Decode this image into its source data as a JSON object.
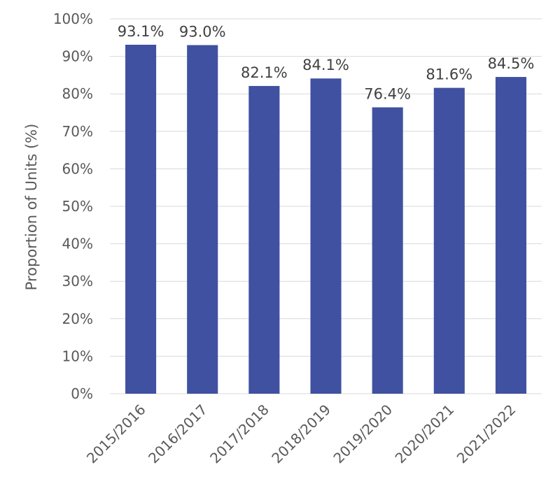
{
  "chart_data": {
    "type": "bar",
    "title": "",
    "xlabel": "",
    "ylabel": "Proportion of Units (%)",
    "categories": [
      "2015/2016",
      "2016/2017",
      "2017/2018",
      "2018/2019",
      "2019/2020",
      "2020/2021",
      "2021/2022"
    ],
    "values": [
      93.1,
      93.0,
      82.1,
      84.1,
      76.4,
      81.6,
      84.5
    ],
    "data_labels": [
      "93.1%",
      "93.0%",
      "82.1%",
      "84.1%",
      "76.4%",
      "81.6%",
      "84.5%"
    ],
    "y_ticks": [
      0,
      10,
      20,
      30,
      40,
      50,
      60,
      70,
      80,
      90,
      100
    ],
    "y_tick_labels": [
      "0%",
      "10%",
      "20%",
      "30%",
      "40%",
      "50%",
      "60%",
      "70%",
      "80%",
      "90%",
      "100%"
    ],
    "ylim": [
      0,
      100
    ],
    "grid": true,
    "legend": "none",
    "bar_color": "#3f51a0"
  }
}
